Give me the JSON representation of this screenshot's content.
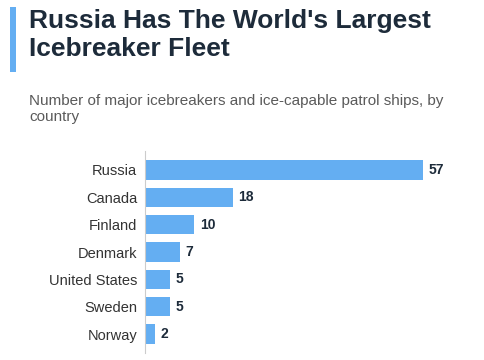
{
  "chart_data": {
    "type": "bar",
    "title": "Russia Has The World's Largest Icebreaker Fleet",
    "subtitle": "Number of major icebreakers and ice-capable patrol ships, by country",
    "categories": [
      "Russia",
      "Canada",
      "Finland",
      "Denmark",
      "United States",
      "Sweden",
      "Norway"
    ],
    "values": [
      57,
      18,
      10,
      7,
      5,
      5,
      2
    ],
    "color": "#64aef2",
    "orientation": "horizontal",
    "data_labels": true,
    "tick_labels": "y"
  }
}
